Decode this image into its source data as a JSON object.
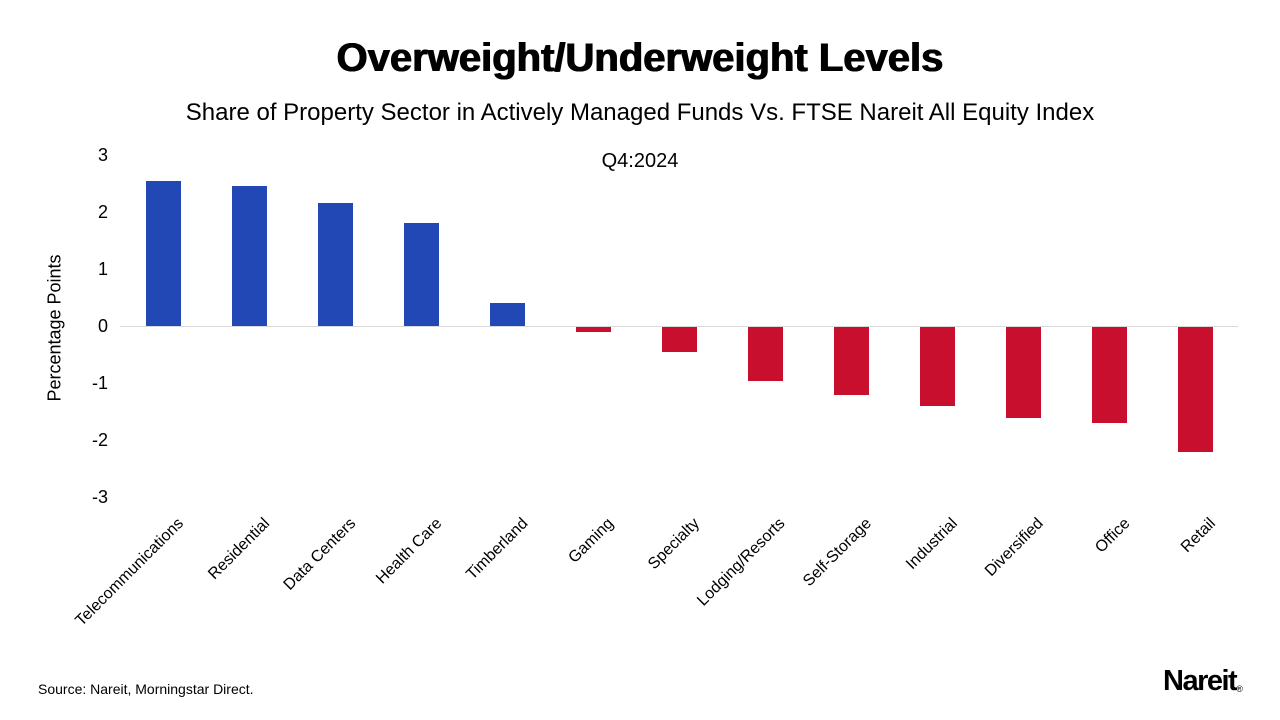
{
  "title": "Overweight/Underweight Levels",
  "subtitle": "Share of Property Sector in Actively Managed Funds Vs. FTSE Nareit All Equity Index",
  "period_label": "Q4:2024",
  "source": "Source: Nareit, Morningstar Direct.",
  "logo": {
    "text": "Nareit",
    "registered_mark": "®"
  },
  "chart_data": {
    "type": "bar",
    "title": "Overweight/Underweight Levels",
    "subtitle": "Share of Property Sector in Actively Managed Funds Vs. FTSE Nareit All Equity Index",
    "annotation": "Q4:2024",
    "xlabel": "",
    "ylabel": "Percentage Points",
    "ylim": [
      -3,
      3
    ],
    "yticks": [
      3,
      2,
      1,
      0,
      -1,
      -2,
      -3
    ],
    "grid": "zero-line-only",
    "legend_position": "none",
    "categories": [
      "Telecommunications",
      "Residential",
      "Data Centers",
      "Health Care",
      "Timberland",
      "Gaming",
      "Specialty",
      "Lodging/Resorts",
      "Self-Storage",
      "Industrial",
      "Diversified",
      "Office",
      "Retail"
    ],
    "values": [
      2.55,
      2.45,
      2.15,
      1.8,
      0.4,
      -0.1,
      -0.45,
      -0.95,
      -1.2,
      -1.4,
      -1.6,
      -1.7,
      -2.2
    ],
    "positive_color": "#2148b4",
    "negative_color": "#c8102e",
    "zero_line_color": "#d9d9d9"
  }
}
